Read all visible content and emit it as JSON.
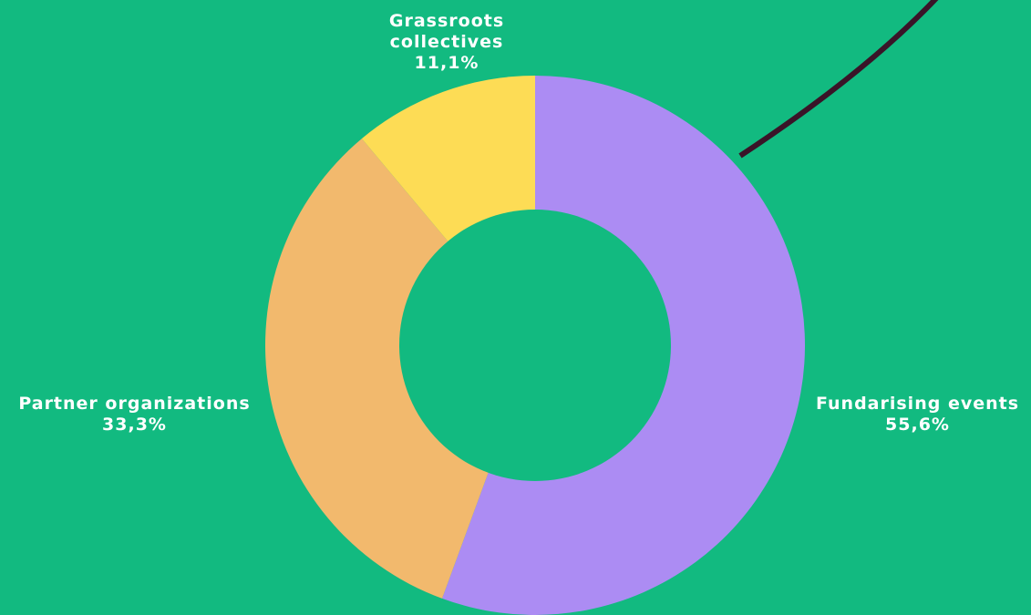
{
  "chart_data": {
    "type": "pie",
    "donut": true,
    "slices": [
      {
        "label": "Fundarising events",
        "value_label": "55,6%",
        "value": 55.6,
        "color": "#AC8CF3"
      },
      {
        "label": "Partner organizations",
        "value_label": "33,3%",
        "value": 33.3,
        "color": "#F2B96D"
      },
      {
        "label": "Grassroots collectives",
        "value_label": "11,1%",
        "value": 11.1,
        "color": "#FDDC55"
      }
    ]
  },
  "labels": {
    "grassroots_line1": "Grassroots",
    "grassroots_line2": "collectives",
    "grassroots_pct": "11,1%",
    "partner_name": "Partner organizations",
    "partner_pct": "33,3%",
    "fund_name": "Fundarising events",
    "fund_pct": "55,6%"
  },
  "colors": {
    "background": "#12BA80",
    "hole": "#12BA80",
    "decorative_line": "#3A1428"
  }
}
